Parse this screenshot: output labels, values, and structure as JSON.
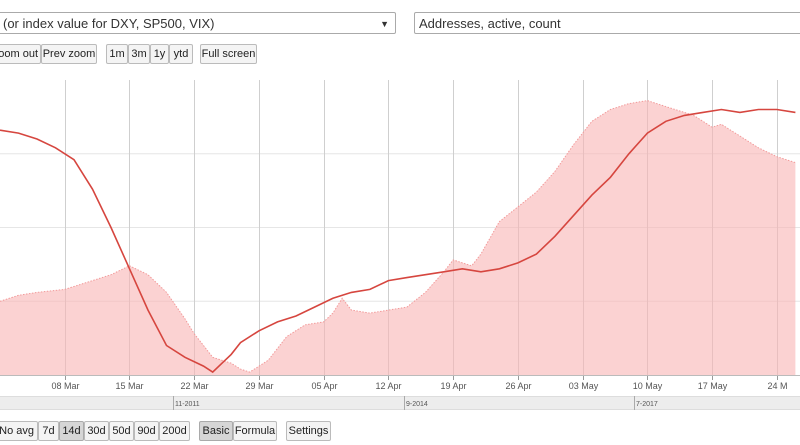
{
  "controls": {
    "asset_select": "(or index value for DXY, SP500, VIX)",
    "metric_select": "Addresses, active, count",
    "zoom_out": "Zoom out",
    "prev_zoom": "Prev zoom",
    "range_buttons": [
      "1m",
      "3m",
      "1y",
      "ytd"
    ],
    "full_screen": "Full screen",
    "avg_buttons": [
      "No avg",
      "7d",
      "14d",
      "30d",
      "50d",
      "90d",
      "200d"
    ],
    "avg_selected": "14d",
    "mode_buttons": [
      "Basic",
      "Formula"
    ],
    "mode_selected": "Basic",
    "settings": "Settings"
  },
  "navigator": {
    "labels": [
      "11-2011",
      "9-2014",
      "7-2017"
    ]
  },
  "chart_data": {
    "type": "area",
    "title": "",
    "xlabel": "",
    "ylabel": "",
    "grid": true,
    "x_tick_labels": [
      "08 Mar",
      "15 Mar",
      "22 Mar",
      "29 Mar",
      "05 Apr",
      "12 Apr",
      "19 Apr",
      "26 Apr",
      "03 May",
      "10 May",
      "17 May",
      "24 M"
    ],
    "x_tick_days": [
      7,
      14,
      21,
      28,
      35,
      42,
      49,
      56,
      63,
      70,
      77,
      84
    ],
    "y_range": [
      0,
      100
    ],
    "series": [
      {
        "kind": "area",
        "color": "#f8b4b4",
        "stroke": "#f29a9a",
        "x": [
          0,
          2,
          4,
          7,
          10,
          12,
          14,
          16,
          18,
          20,
          21,
          22,
          23,
          24,
          25,
          26,
          27,
          29,
          31,
          33,
          35,
          36,
          37,
          38,
          40,
          42,
          44,
          46,
          48,
          49,
          50,
          51,
          52,
          54,
          56,
          58,
          60,
          62,
          64,
          66,
          68,
          70,
          72,
          73,
          74,
          75,
          76,
          77,
          78,
          79,
          80,
          81,
          82,
          84,
          86
        ],
        "values": [
          25,
          27,
          28,
          29,
          32,
          34,
          37,
          34,
          28,
          19,
          14,
          10,
          6,
          5,
          4,
          2,
          1,
          5,
          13,
          17,
          18,
          21,
          26,
          22,
          21,
          22,
          23,
          28,
          35,
          39,
          38,
          37,
          41,
          52,
          57,
          62,
          69,
          78,
          86,
          90,
          92,
          93,
          91,
          90,
          89,
          88,
          86,
          84,
          85,
          83,
          81,
          79,
          77,
          74,
          72
        ]
      },
      {
        "kind": "line",
        "color": "#d6463f",
        "x": [
          0,
          2,
          4,
          6,
          8,
          10,
          12,
          14,
          16,
          18,
          20,
          22,
          23,
          24,
          25,
          26,
          28,
          30,
          32,
          34,
          36,
          38,
          40,
          42,
          44,
          46,
          48,
          50,
          52,
          54,
          56,
          58,
          60,
          62,
          64,
          66,
          68,
          70,
          72,
          74,
          76,
          78,
          80,
          82,
          84,
          86
        ],
        "values": [
          83,
          82,
          80,
          77,
          73,
          63,
          50,
          36,
          22,
          10,
          6,
          3,
          1,
          4,
          7,
          11,
          15,
          18,
          20,
          23,
          26,
          28,
          29,
          32,
          33,
          34,
          35,
          36,
          35,
          36,
          38,
          41,
          47,
          54,
          61,
          67,
          75,
          82,
          86,
          88,
          89,
          90,
          89,
          90,
          90,
          89
        ]
      }
    ]
  }
}
